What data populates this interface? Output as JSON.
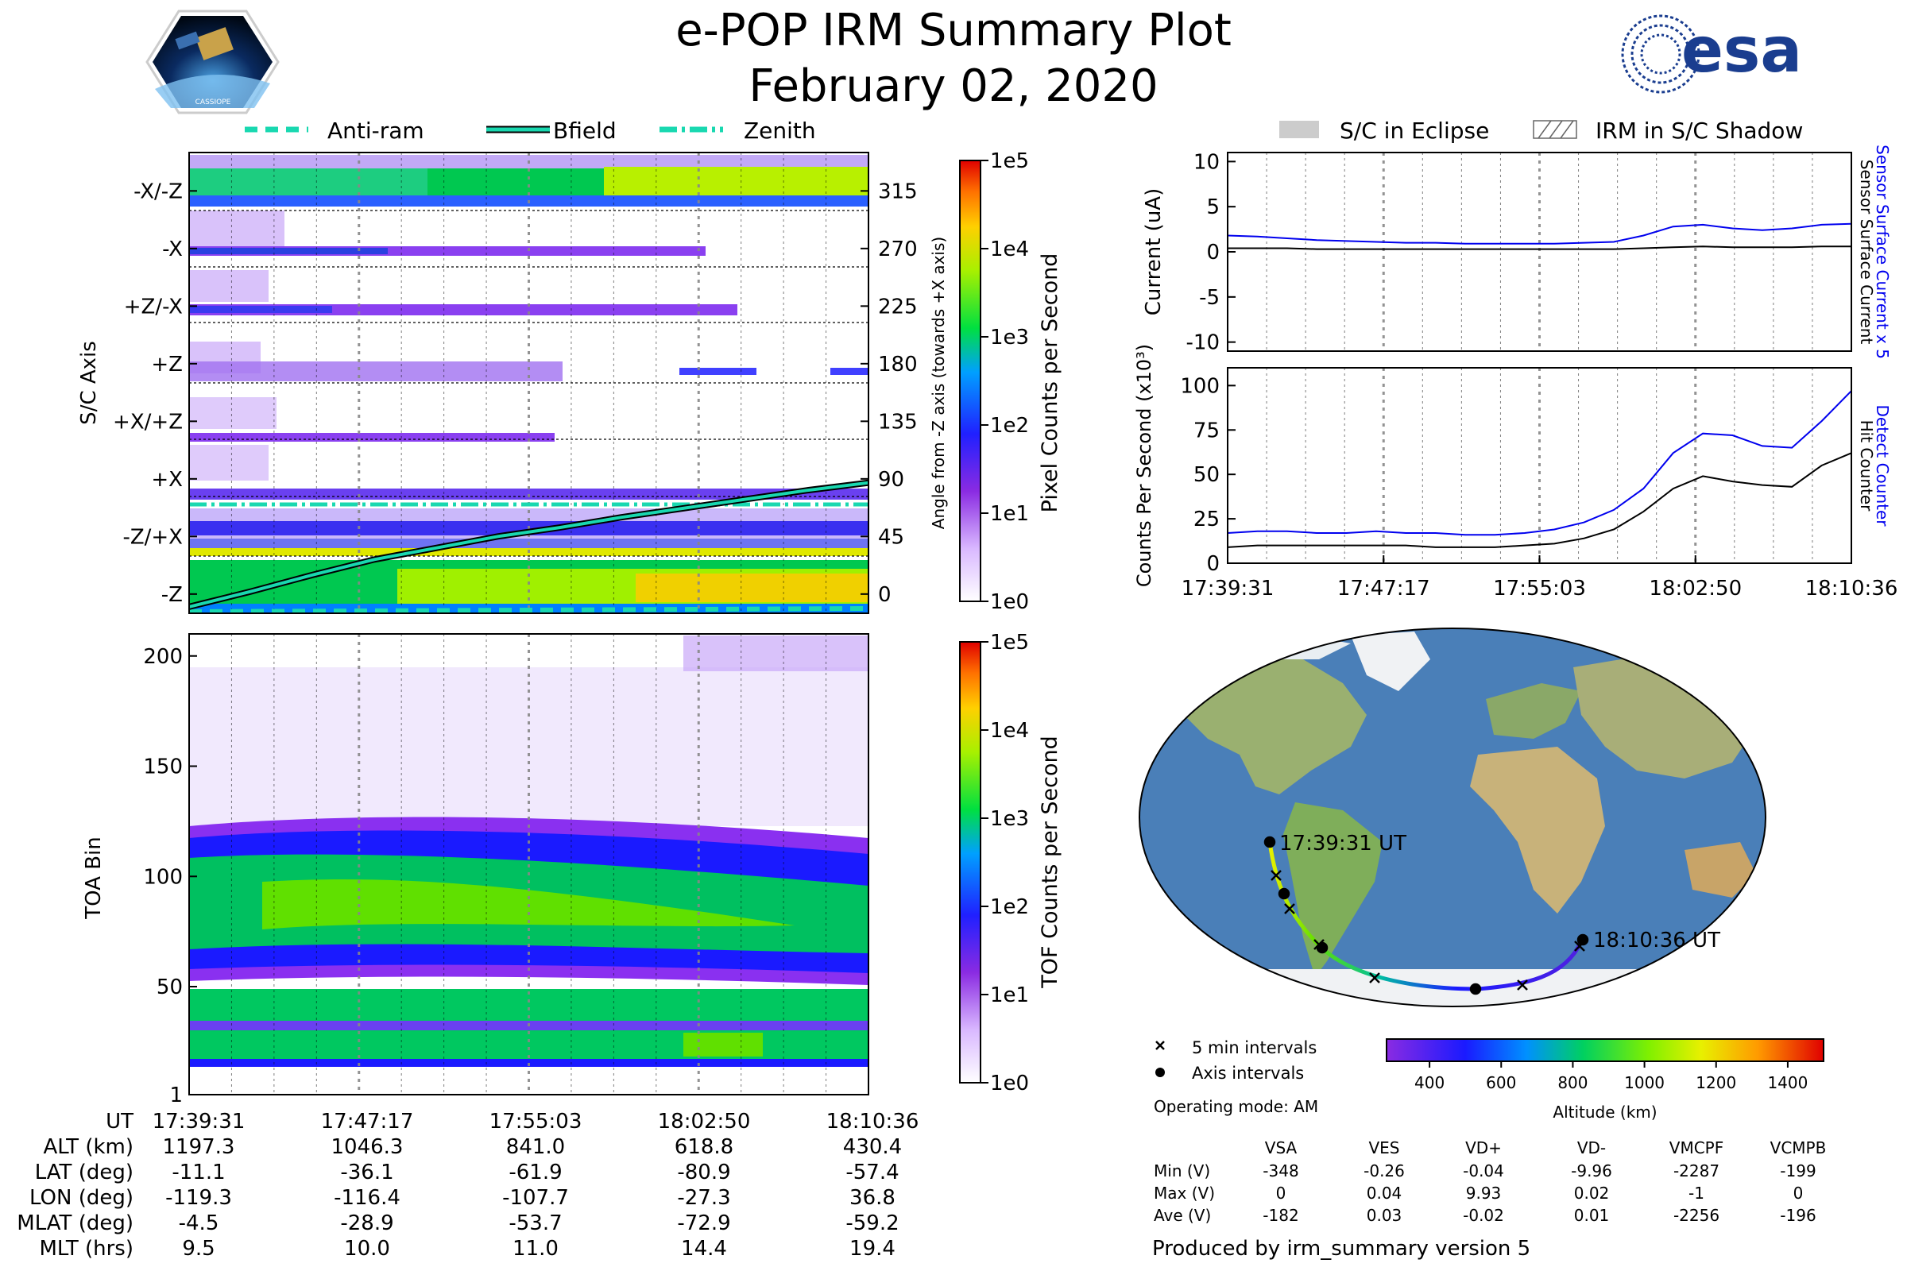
{
  "header": {
    "title": "e-POP IRM Summary Plot",
    "date": "February 02, 2020",
    "mission_logo_text": "CASSIOPE",
    "agency_logo_text": "esa"
  },
  "legends": {
    "left": [
      "Anti-ram",
      "Bfield",
      "Zenith"
    ],
    "right": [
      "S/C in Eclipse",
      "IRM in S/C Shadow"
    ]
  },
  "colors": {
    "series_blue": "#0000ee",
    "series_black": "#000000",
    "trace_cyan": "#19d8b0",
    "eclipse_gray": "#cccccc"
  },
  "chart_data": [
    {
      "id": "axis_panel",
      "type": "heatmap",
      "ylabel": "S/C Axis",
      "y_categories": [
        "-X/-Z",
        "-X",
        "+Z/-X",
        "+Z",
        "+X/+Z",
        "+X",
        "-Z/+X",
        "-Z"
      ],
      "right_axis": {
        "label": "Angle from -Z axis (towards +X axis)",
        "ticks": [
          315,
          270,
          225,
          180,
          135,
          90,
          45,
          0
        ],
        "range": [
          -15,
          345
        ]
      },
      "colorbar": {
        "label": "Pixel Counts per Second",
        "ticks": [
          "1e5",
          "1e4",
          "1e3",
          "1e2",
          "1e1",
          "1e0"
        ],
        "scale": "log"
      },
      "bfield_angle_deg": [
        -10,
        2,
        15,
        27,
        36,
        45,
        52,
        60,
        67,
        74,
        81,
        87
      ],
      "zenith_angle_deg": 70,
      "antiram_angle_deg": -15
    },
    {
      "id": "toa_panel",
      "type": "heatmap",
      "ylabel": "TOA Bin",
      "y_ticks": [
        1,
        50,
        100,
        150,
        200
      ],
      "ylim": [
        1,
        210
      ],
      "colorbar": {
        "label": "TOF Counts per Second",
        "ticks": [
          "1e5",
          "1e4",
          "1e3",
          "1e2",
          "1e1",
          "1e0"
        ],
        "scale": "log"
      }
    },
    {
      "id": "current_panel",
      "type": "line",
      "ylabel": "Current (uA)",
      "y_ticks": [
        10,
        5,
        0,
        -5,
        -10
      ],
      "ylim": [
        -11,
        11
      ],
      "right_labels": [
        "Sensor Surface Current x 5",
        "Sensor Surface Current"
      ],
      "series": [
        {
          "name": "Sensor Surface Current x 5",
          "color": "#0000ee",
          "values": [
            1.8,
            1.7,
            1.5,
            1.3,
            1.2,
            1.1,
            1.0,
            1.0,
            0.9,
            0.9,
            0.9,
            0.9,
            1.0,
            1.1,
            1.8,
            2.8,
            3.0,
            2.6,
            2.4,
            2.6,
            3.0,
            3.1
          ]
        },
        {
          "name": "Sensor Surface Current",
          "color": "#000000",
          "values": [
            0.4,
            0.4,
            0.4,
            0.3,
            0.3,
            0.3,
            0.3,
            0.3,
            0.3,
            0.3,
            0.3,
            0.3,
            0.3,
            0.3,
            0.4,
            0.5,
            0.6,
            0.5,
            0.5,
            0.5,
            0.6,
            0.6
          ]
        }
      ]
    },
    {
      "id": "counts_panel",
      "type": "line",
      "ylabel": "Counts Per Second (x10³)",
      "y_ticks": [
        100,
        75,
        50,
        25,
        0
      ],
      "ylim": [
        0,
        110
      ],
      "x_ticks": [
        "17:39:31",
        "17:47:17",
        "17:55:03",
        "18:02:50",
        "18:10:36"
      ],
      "right_labels": [
        "Detect Counter",
        "Hit Counter"
      ],
      "series": [
        {
          "name": "Detect Counter",
          "color": "#0000ee",
          "values": [
            17,
            18,
            18,
            17,
            17,
            18,
            17,
            17,
            16,
            16,
            17,
            19,
            23,
            30,
            42,
            62,
            73,
            72,
            66,
            65,
            80,
            97
          ]
        },
        {
          "name": "Hit Counter",
          "color": "#000000",
          "values": [
            9,
            10,
            10,
            10,
            10,
            10,
            10,
            9,
            9,
            9,
            10,
            11,
            14,
            19,
            29,
            42,
            49,
            46,
            44,
            43,
            55,
            62
          ]
        }
      ]
    },
    {
      "id": "altitude_colorbar",
      "type": "heatmap",
      "xlabel": "Altitude (km)",
      "x_ticks": [
        400,
        600,
        800,
        1000,
        1200,
        1400
      ],
      "range": [
        280,
        1500
      ]
    }
  ],
  "time_table": {
    "row_labels": [
      "UT",
      "ALT (km)",
      "LAT (deg)",
      "LON (deg)",
      "MLAT (deg)",
      "MLT (hrs)"
    ],
    "columns": [
      [
        "17:39:31",
        "1197.3",
        "-11.1",
        "-119.3",
        "-4.5",
        "9.5"
      ],
      [
        "17:47:17",
        "1046.3",
        "-36.1",
        "-116.4",
        "-28.9",
        "10.0"
      ],
      [
        "17:55:03",
        "841.0",
        "-61.9",
        "-107.7",
        "-53.7",
        "11.0"
      ],
      [
        "18:02:50",
        "618.8",
        "-80.9",
        "-27.3",
        "-72.9",
        "14.4"
      ],
      [
        "18:10:36",
        "430.4",
        "-57.4",
        "36.8",
        "-59.2",
        "19.4"
      ]
    ]
  },
  "map": {
    "start_label": "17:39:31 UT",
    "end_label": "18:10:36 UT",
    "marker_legend": [
      "5 min intervals",
      "Axis intervals"
    ],
    "operating_mode": "Operating mode: AM"
  },
  "voltage_table": {
    "headers": [
      "VSA",
      "VES",
      "VD+",
      "VD-",
      "VMCPF",
      "VCMPB"
    ],
    "rows": [
      {
        "label": "Min (V)",
        "values": [
          "-348",
          "-0.26",
          "-0.04",
          "-9.96",
          "-2287",
          "-199"
        ]
      },
      {
        "label": "Max (V)",
        "values": [
          "0",
          "0.04",
          "9.93",
          "0.02",
          "-1",
          "0"
        ]
      },
      {
        "label": "Ave (V)",
        "values": [
          "-182",
          "0.03",
          "-0.02",
          "0.01",
          "-2256",
          "-196"
        ]
      }
    ]
  },
  "footer": "Produced by irm_summary version 5"
}
